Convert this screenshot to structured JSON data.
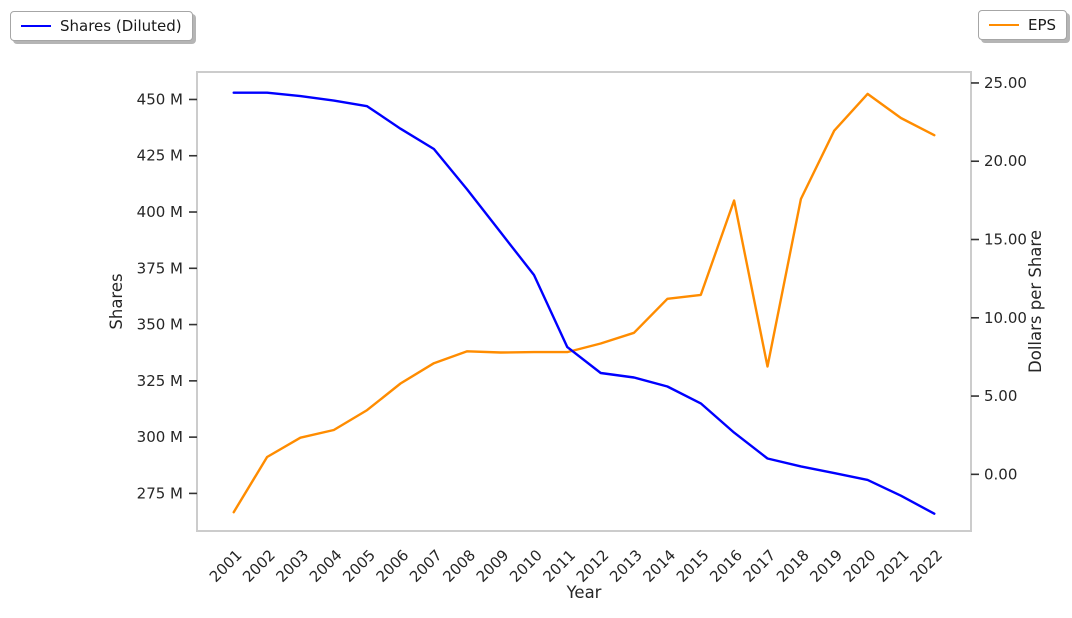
{
  "legend": {
    "shares": {
      "label": "Shares (Diluted)",
      "color": "#0000ff"
    },
    "eps": {
      "label": "EPS",
      "color": "#ff8c00"
    }
  },
  "colors": {
    "shares_line": "#0000ff",
    "eps_line": "#ff8c00",
    "spine": "#cccccc",
    "tick_mark": "#333333",
    "text": "#262626"
  },
  "chart_data": {
    "type": "line",
    "title": "",
    "xlabel": "Year",
    "grid": false,
    "legend_position": "upper-left and upper-right, outside plot",
    "x": [
      2001,
      2002,
      2003,
      2004,
      2005,
      2006,
      2007,
      2008,
      2009,
      2010,
      2011,
      2012,
      2013,
      2014,
      2015,
      2016,
      2017,
      2018,
      2019,
      2020,
      2021,
      2022
    ],
    "series": [
      {
        "name": "Shares (Diluted)",
        "axis": "left",
        "color": "#0000ff",
        "units": "millions of shares",
        "values": [
          453,
          453,
          451.5,
          449.5,
          447,
          437,
          428,
          410,
          391,
          372,
          340,
          328.5,
          326.5,
          322.5,
          315,
          302,
          290.5,
          287,
          284,
          281,
          274,
          266
        ]
      },
      {
        "name": "EPS",
        "axis": "right",
        "color": "#ff8c00",
        "units": "dollars per share",
        "values": [
          -2.42,
          1.11,
          2.34,
          2.83,
          4.1,
          5.8,
          7.1,
          7.86,
          7.78,
          7.81,
          7.81,
          8.36,
          9.04,
          11.21,
          11.46,
          17.49,
          6.89,
          17.59,
          21.95,
          24.3,
          22.76,
          21.66
        ]
      }
    ],
    "x_axis": {
      "tick_labels": [
        "2001",
        "2002",
        "2003",
        "2004",
        "2005",
        "2006",
        "2007",
        "2008",
        "2009",
        "2010",
        "2011",
        "2012",
        "2013",
        "2014",
        "2015",
        "2016",
        "2017",
        "2018",
        "2019",
        "2020",
        "2021",
        "2022"
      ],
      "range": [
        1999.9,
        2023.1
      ],
      "tick_rotation_deg": 45
    },
    "left_axis": {
      "label": "Shares",
      "tick_values": [
        450,
        425,
        400,
        375,
        350,
        325,
        300,
        275
      ],
      "tick_labels": [
        "450 M",
        "425 M",
        "400 M",
        "375 M",
        "350 M",
        "325 M",
        "300 M",
        "275 M"
      ],
      "range": [
        258.3,
        462.2
      ]
    },
    "right_axis": {
      "label": "Dollars per Share",
      "tick_values": [
        25,
        20,
        15,
        10,
        5,
        0
      ],
      "tick_labels": [
        "25.00",
        "20.00",
        "15.00",
        "10.00",
        "5.00",
        "0.00"
      ],
      "range": [
        -3.62,
        25.7
      ]
    }
  }
}
